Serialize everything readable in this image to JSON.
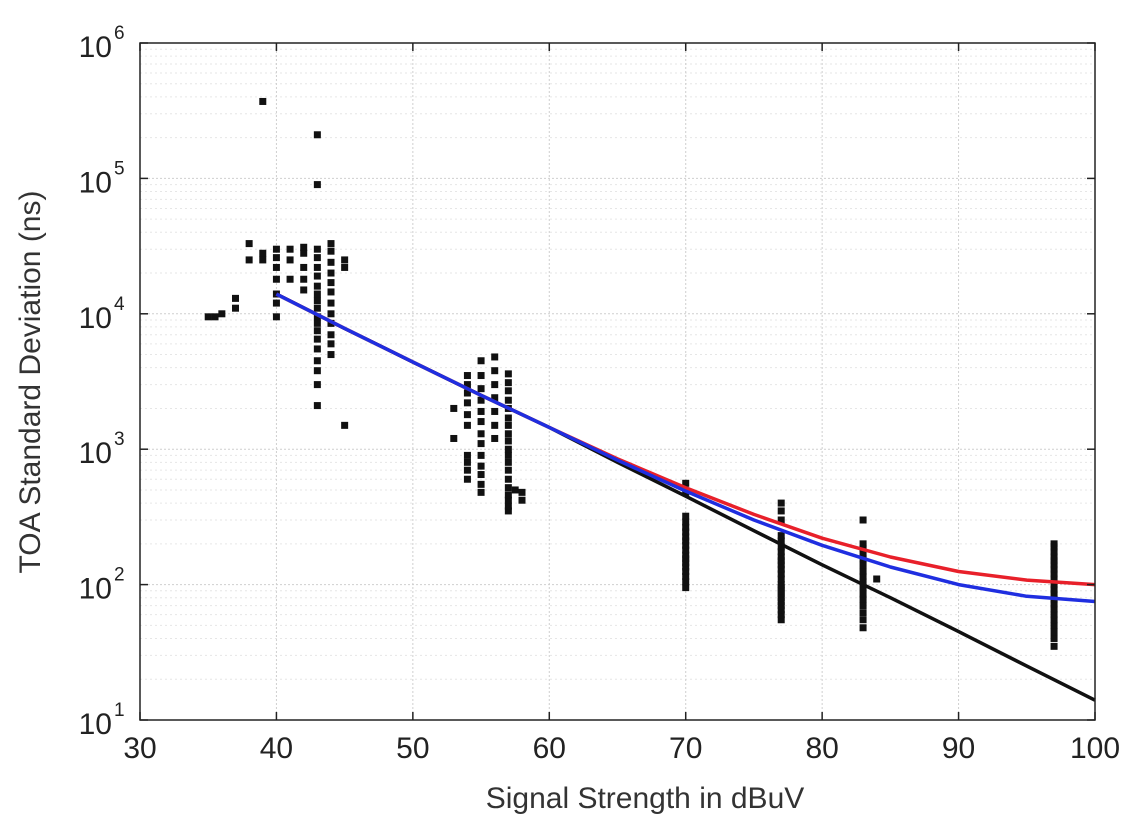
{
  "chart_data": {
    "type": "scatter",
    "xlabel": "Signal Strength in dBuV",
    "ylabel": "TOA Standard Deviation (ns)",
    "xlim": [
      30,
      100
    ],
    "ylim": [
      10,
      1000000
    ],
    "yscale": "log",
    "grid": true,
    "x_ticks": [
      30,
      40,
      50,
      60,
      70,
      80,
      90,
      100
    ],
    "y_ticks": [
      10,
      100,
      1000,
      10000,
      100000,
      1000000
    ],
    "y_tick_bases": [
      "10",
      "10",
      "10",
      "10",
      "10",
      "10"
    ],
    "y_tick_exponents": [
      "1",
      "2",
      "3",
      "4",
      "5",
      "6"
    ],
    "colors": {
      "points": "#111111",
      "red_line": "#e8202a",
      "blue_line": "#1f2ee0",
      "black_line": "#111111"
    },
    "columns": [
      {
        "x": 35,
        "values": [
          9500
        ]
      },
      {
        "x": 35.5,
        "values": [
          9500
        ]
      },
      {
        "x": 36,
        "values": [
          10000
        ]
      },
      {
        "x": 37,
        "values": [
          11000,
          13000
        ]
      },
      {
        "x": 38,
        "values": [
          25000,
          33000
        ]
      },
      {
        "x": 39,
        "values": [
          25000,
          28000,
          370000
        ]
      },
      {
        "x": 40,
        "values": [
          9500,
          12000,
          14000,
          18000,
          22000,
          26000,
          30000
        ]
      },
      {
        "x": 41,
        "values": [
          18000,
          25000,
          30000
        ]
      },
      {
        "x": 42,
        "values": [
          15000,
          18000,
          22000,
          28000,
          31000
        ]
      },
      {
        "x": 43,
        "values": [
          2100,
          3000,
          3800,
          4500,
          5500,
          6500,
          7500,
          8500,
          9500,
          11000,
          12500,
          14000,
          16000,
          19000,
          22000,
          26000,
          30000,
          90000,
          210000
        ]
      },
      {
        "x": 44,
        "values": [
          5000,
          6000,
          7000,
          8500,
          10000,
          12000,
          14500,
          17000,
          20000,
          24000,
          29000,
          33000
        ]
      },
      {
        "x": 45,
        "values": [
          1500,
          22000,
          25000
        ]
      },
      {
        "x": 53,
        "values": [
          1200,
          2000
        ]
      },
      {
        "x": 54,
        "values": [
          600,
          700,
          800,
          900,
          1500,
          1800,
          2200,
          2600,
          3000,
          3500
        ]
      },
      {
        "x": 55,
        "values": [
          480,
          550,
          650,
          750,
          900,
          1100,
          1300,
          1600,
          1900,
          2300,
          2800,
          3500,
          4500
        ]
      },
      {
        "x": 56,
        "values": [
          1200,
          1500,
          1900,
          2400,
          3000,
          3800,
          4800
        ]
      },
      {
        "x": 57,
        "values": [
          350,
          380,
          420,
          460,
          520,
          600,
          700,
          800,
          900,
          1000,
          1150,
          1300,
          1500,
          1700,
          2000,
          2300,
          2700,
          3100,
          3600
        ]
      },
      {
        "x": 57.5,
        "values": [
          500
        ]
      },
      {
        "x": 58,
        "values": [
          420,
          480
        ]
      },
      {
        "x": 70,
        "values": [
          95,
          105,
          115,
          125,
          135,
          145,
          155,
          165,
          180,
          195,
          210,
          225,
          245,
          265,
          290,
          320,
          480,
          560
        ]
      },
      {
        "x": 77,
        "values": [
          55,
          60,
          65,
          70,
          75,
          80,
          85,
          90,
          95,
          100,
          110,
          120,
          130,
          140,
          150,
          160,
          175,
          190,
          210,
          230,
          300,
          350,
          400
        ]
      },
      {
        "x": 83,
        "values": [
          48,
          55,
          62,
          70,
          78,
          85,
          95,
          105,
          115,
          125,
          140,
          155,
          170,
          185,
          200,
          300
        ]
      },
      {
        "x": 84,
        "values": [
          110
        ]
      },
      {
        "x": 97,
        "values": [
          35,
          40,
          45,
          50,
          55,
          60,
          66,
          72,
          78,
          85,
          92,
          100,
          110,
          120,
          130,
          140,
          150,
          160,
          175,
          190,
          200
        ]
      }
    ],
    "series": [
      {
        "color": "red",
        "x": [
          40,
          45,
          50,
          55,
          60,
          65,
          70,
          75,
          80,
          85,
          90,
          95,
          100
        ],
        "values": [
          14000,
          7800,
          4400,
          2500,
          1450,
          850,
          520,
          330,
          220,
          160,
          125,
          108,
          100
        ]
      },
      {
        "color": "blue",
        "x": [
          40,
          45,
          50,
          55,
          60,
          65,
          70,
          75,
          80,
          85,
          90,
          95,
          100
        ],
        "values": [
          14000,
          7800,
          4400,
          2500,
          1450,
          830,
          490,
          300,
          195,
          135,
          100,
          82,
          75
        ]
      },
      {
        "color": "black",
        "x": [
          40,
          45,
          50,
          55,
          60,
          65,
          70,
          75,
          80,
          85,
          90,
          95,
          100
        ],
        "values": [
          14000,
          7800,
          4400,
          2500,
          1450,
          800,
          450,
          250,
          140,
          80,
          45,
          25,
          14
        ]
      }
    ]
  }
}
